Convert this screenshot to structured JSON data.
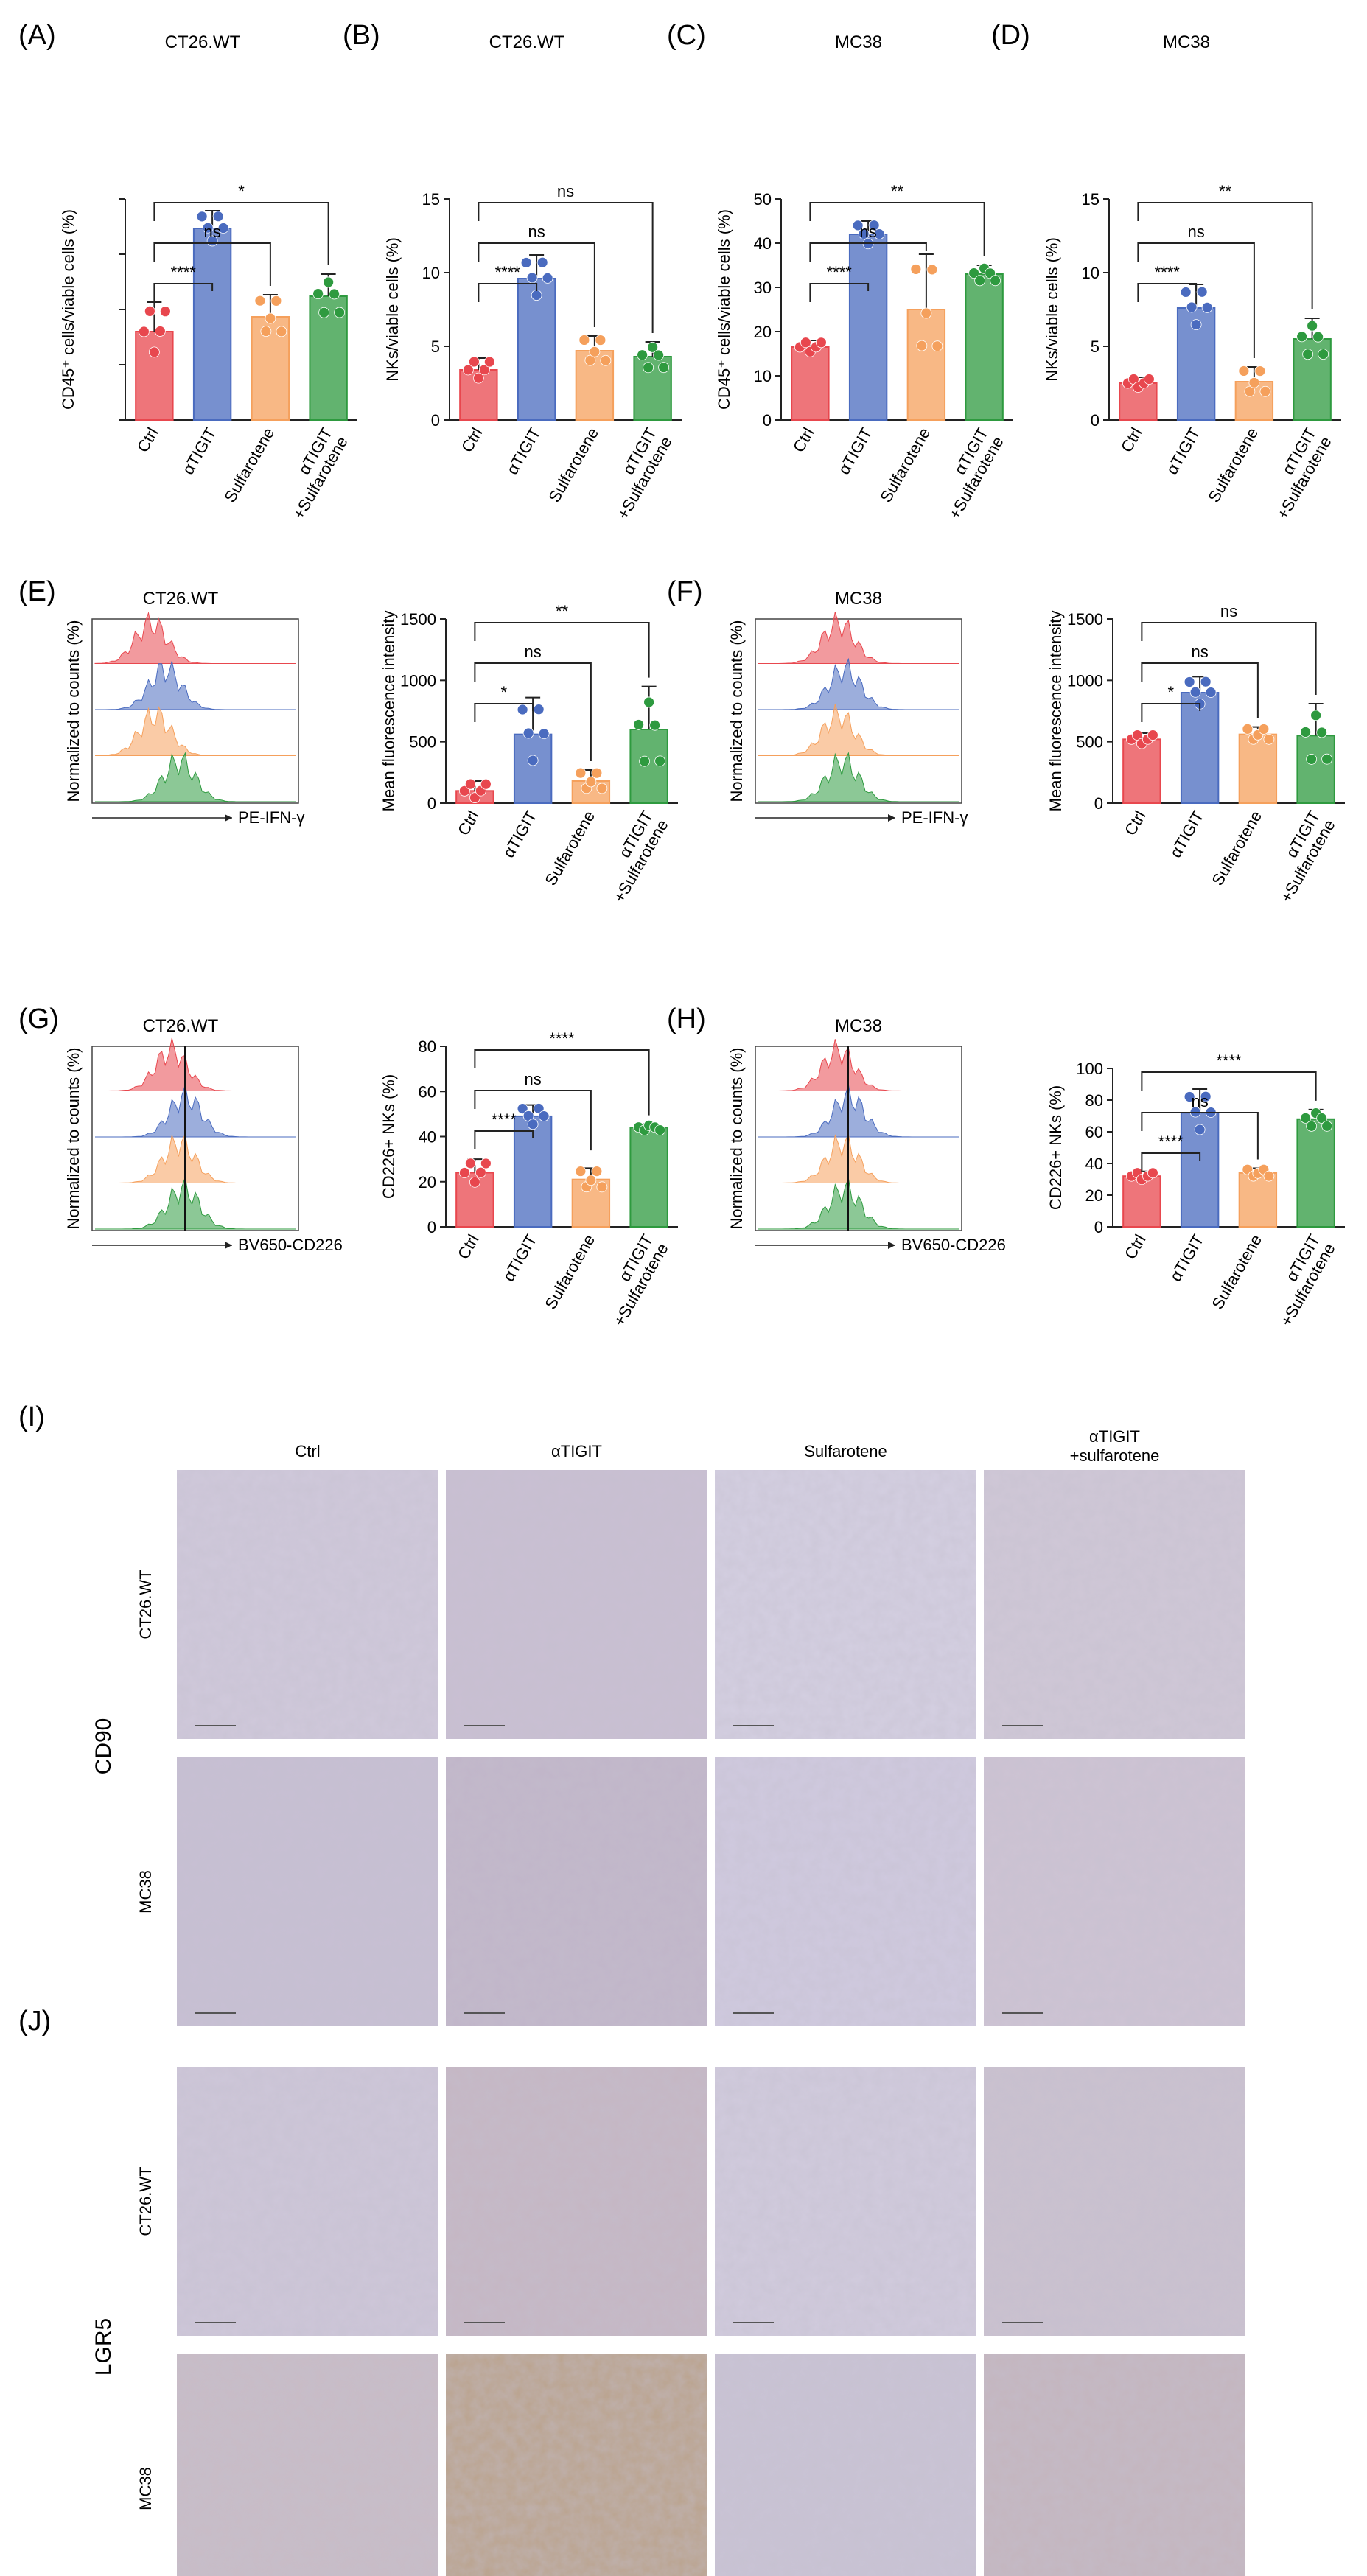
{
  "colors": {
    "ctrl": "#e8474e",
    "atigit": "#4a6bbf",
    "sulf": "#f5a05c",
    "combo": "#2e9a3f",
    "axis": "#222222",
    "tissue": "#cdc6d8"
  },
  "groups": [
    "Ctrl",
    "αTIGIT",
    "Sulfarotene",
    "αTIGIT\n+Sulfarotene"
  ],
  "panels": [
    {
      "id": "bar-a",
      "label": "(A)",
      "title": "CT26.WT",
      "ylabel": "CD45⁺ cells/viable cells (%)"
    },
    {
      "id": "bar-b",
      "label": "(B)",
      "title": "CT26.WT",
      "ylabel": "NKs/viable cells (%)"
    },
    {
      "id": "bar-c",
      "label": "(C)",
      "title": "MC38",
      "ylabel": "CD45⁺ cells/viable cells (%)"
    },
    {
      "id": "bar-d",
      "label": "(D)",
      "title": "MC38",
      "ylabel": "NKs/viable cells (%)"
    },
    {
      "id": "hist-e",
      "label": "(E)",
      "title": "CT26.WT",
      "ylabel": "Normalized to counts (%)",
      "xlabel": "PE-IFN-γ"
    },
    {
      "id": "bar-e",
      "label": "",
      "title": "",
      "ylabel": "Mean fluorescence intensity"
    },
    {
      "id": "hist-f",
      "label": "(F)",
      "title": "MC38",
      "ylabel": "Normalized to counts (%)",
      "xlabel": "PE-IFN-γ"
    },
    {
      "id": "bar-f",
      "label": "",
      "title": "",
      "ylabel": "Mean fluorescence intensity"
    },
    {
      "id": "hist-g",
      "label": "(G)",
      "title": "CT26.WT",
      "ylabel": "Normalized to counts (%)",
      "xlabel": "BV650-CD226"
    },
    {
      "id": "bar-g",
      "label": "",
      "title": "",
      "ylabel": "CD226+ NKs (%)"
    },
    {
      "id": "hist-h",
      "label": "(H)",
      "title": "MC38",
      "ylabel": "Normalized to counts (%)",
      "xlabel": "BV650-CD226"
    },
    {
      "id": "bar-h",
      "label": "",
      "title": "",
      "ylabel": "CD226+ NKs (%)"
    }
  ],
  "chart_data": [
    {
      "type": "bar",
      "panel": "bar-a",
      "categories": [
        "Ctrl",
        "αTIGIT",
        "Sulfarotene",
        "αTIGIT\n+Sulfarotene"
      ],
      "values": [
        6,
        13,
        7,
        8.4
      ],
      "errors": [
        2,
        1.2,
        1.5,
        1.5
      ],
      "ylim": [
        0,
        15
      ],
      "yticks": [],
      "sig": [
        {
          "to": 1,
          "text": "****"
        },
        {
          "to": 2,
          "text": "ns"
        },
        {
          "to": 3,
          "text": "*"
        }
      ]
    },
    {
      "type": "bar",
      "panel": "bar-b",
      "categories": [
        "Ctrl",
        "αTIGIT",
        "Sulfarotene",
        "αTIGIT\n+Sulfarotene"
      ],
      "values": [
        3.4,
        9.6,
        4.7,
        4.3
      ],
      "errors": [
        0.8,
        1.6,
        1.0,
        1.0
      ],
      "ylim": [
        0,
        15
      ],
      "yticks": [
        0,
        5,
        10,
        15
      ],
      "sig": [
        {
          "to": 1,
          "text": "****"
        },
        {
          "to": 2,
          "text": "ns"
        },
        {
          "to": 3,
          "text": "ns"
        }
      ]
    },
    {
      "type": "bar",
      "panel": "bar-c",
      "categories": [
        "Ctrl",
        "αTIGIT",
        "Sulfarotene",
        "αTIGIT\n+Sulfarotene"
      ],
      "values": [
        16.5,
        42,
        25,
        33
      ],
      "errors": [
        1.5,
        3,
        12.5,
        2
      ],
      "ylim": [
        0,
        50
      ],
      "yticks": [
        0,
        10,
        20,
        30,
        40,
        50
      ],
      "sig": [
        {
          "to": 1,
          "text": "****"
        },
        {
          "to": 2,
          "text": "ns"
        },
        {
          "to": 3,
          "text": "**"
        }
      ]
    },
    {
      "type": "bar",
      "panel": "bar-d",
      "categories": [
        "Ctrl",
        "αTIGIT",
        "Sulfarotene",
        "αTIGIT\n+Sulfarotene"
      ],
      "values": [
        2.5,
        7.6,
        2.6,
        5.5
      ],
      "errors": [
        0.4,
        1.6,
        1.0,
        1.4
      ],
      "ylim": [
        0,
        15
      ],
      "yticks": [
        0,
        5,
        10,
        15
      ],
      "sig": [
        {
          "to": 1,
          "text": "****"
        },
        {
          "to": 2,
          "text": "ns"
        },
        {
          "to": 3,
          "text": "**"
        }
      ]
    },
    {
      "type": "bar",
      "panel": "bar-e",
      "categories": [
        "Ctrl",
        "αTIGIT",
        "Sulfarotene",
        "αTIGIT\n+Sulfarotene"
      ],
      "values": [
        100,
        560,
        180,
        600
      ],
      "errors": [
        80,
        300,
        90,
        350
      ],
      "ylim": [
        0,
        1500
      ],
      "yticks": [
        0,
        500,
        1000,
        1500
      ],
      "sig": [
        {
          "to": 1,
          "text": "*"
        },
        {
          "to": 2,
          "text": "ns"
        },
        {
          "to": 3,
          "text": "**"
        }
      ]
    },
    {
      "type": "bar",
      "panel": "bar-f",
      "categories": [
        "Ctrl",
        "αTIGIT",
        "Sulfarotene",
        "αTIGIT\n+Sulfarotene"
      ],
      "values": [
        520,
        900,
        560,
        550
      ],
      "errors": [
        50,
        130,
        60,
        260
      ],
      "ylim": [
        0,
        1500
      ],
      "yticks": [
        0,
        500,
        1000,
        1500
      ],
      "sig": [
        {
          "to": 1,
          "text": "*"
        },
        {
          "to": 2,
          "text": "ns"
        },
        {
          "to": 3,
          "text": "ns"
        }
      ]
    },
    {
      "type": "bar",
      "panel": "bar-g",
      "categories": [
        "Ctrl",
        "αTIGIT",
        "Sulfarotene",
        "αTIGIT\n+Sulfarotene"
      ],
      "values": [
        24,
        49,
        21,
        44
      ],
      "errors": [
        6,
        5,
        5,
        1.5
      ],
      "ylim": [
        0,
        80
      ],
      "yticks": [
        0,
        20,
        40,
        60,
        80
      ],
      "sig": [
        {
          "to": 1,
          "text": "****"
        },
        {
          "to": 2,
          "text": "ns"
        },
        {
          "to": 3,
          "text": "****"
        }
      ]
    },
    {
      "type": "bar",
      "panel": "bar-h",
      "categories": [
        "Ctrl",
        "αTIGIT",
        "Sulfarotene",
        "αTIGIT\n+Sulfarotene"
      ],
      "values": [
        32,
        72,
        34,
        68
      ],
      "errors": [
        3,
        15,
        3,
        6
      ],
      "ylim": [
        0,
        100
      ],
      "yticks": [
        0,
        20,
        40,
        60,
        80,
        100
      ],
      "sig": [
        {
          "to": 1,
          "text": "****"
        },
        {
          "to": 2,
          "text": "ns"
        },
        {
          "to": 3,
          "text": "****"
        }
      ]
    }
  ],
  "micro": {
    "label_i": "(I)",
    "label_j": "(J)",
    "columns": [
      "Ctrl",
      "αTIGIT",
      "Sulfarotene",
      "αTIGIT\n+sulfarotene"
    ],
    "marker_i": "CD90",
    "marker_j": "LGR5",
    "rows": [
      "CT26.WT",
      "MC38"
    ]
  }
}
